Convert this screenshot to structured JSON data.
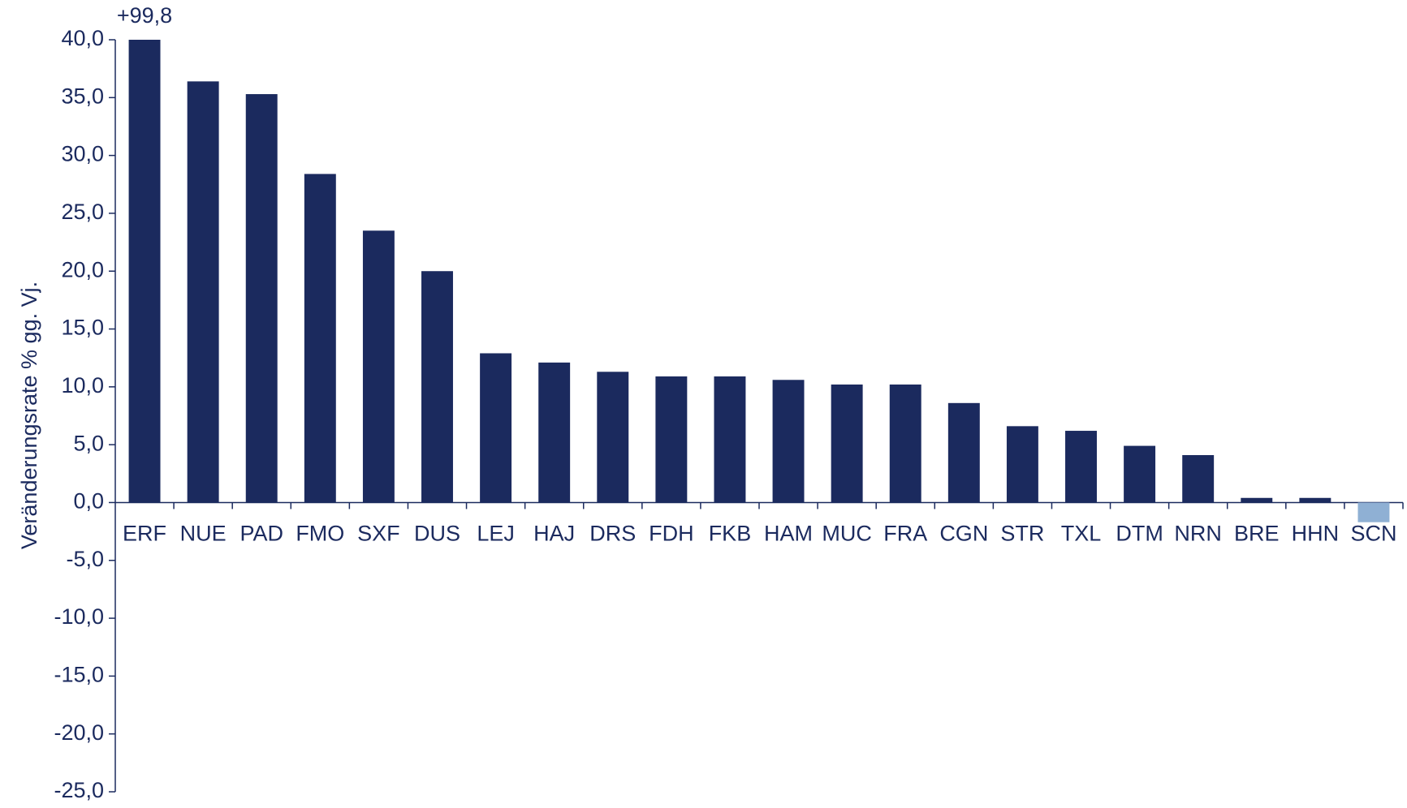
{
  "chart_data": {
    "type": "bar",
    "y_label": "Veränderungsrate % gg. Vj.",
    "categories": [
      "ERF",
      "NUE",
      "PAD",
      "FMO",
      "SXF",
      "DUS",
      "LEJ",
      "HAJ",
      "DRS",
      "FDH",
      "FKB",
      "HAM",
      "MUC",
      "FRA",
      "CGN",
      "STR",
      "TXL",
      "DTM",
      "NRN",
      "BRE",
      "HHN",
      "SCN"
    ],
    "values": [
      99.8,
      36.4,
      35.3,
      28.4,
      23.5,
      20.0,
      12.9,
      12.1,
      11.3,
      10.9,
      10.9,
      10.6,
      10.2,
      10.2,
      8.6,
      6.6,
      6.2,
      4.9,
      4.1,
      0.4,
      0.4,
      -1.7
    ],
    "value_labels": [
      "+99,8",
      null,
      null,
      null,
      null,
      null,
      null,
      null,
      null,
      null,
      null,
      null,
      null,
      null,
      null,
      null,
      null,
      null,
      null,
      null,
      null,
      null
    ],
    "colors": [
      "#1b2a5e",
      "#1b2a5e",
      "#1b2a5e",
      "#1b2a5e",
      "#1b2a5e",
      "#1b2a5e",
      "#1b2a5e",
      "#1b2a5e",
      "#1b2a5e",
      "#1b2a5e",
      "#1b2a5e",
      "#1b2a5e",
      "#1b2a5e",
      "#1b2a5e",
      "#1b2a5e",
      "#1b2a5e",
      "#1b2a5e",
      "#1b2a5e",
      "#1b2a5e",
      "#1b2a5e",
      "#1b2a5e",
      "#8fb0d4"
    ],
    "ylim": [
      -25,
      40
    ],
    "yticks": [
      {
        "value": -25,
        "label": "-25,0"
      },
      {
        "value": -20,
        "label": "-20,0"
      },
      {
        "value": -15,
        "label": "-15,0"
      },
      {
        "value": -10,
        "label": "-10,0"
      },
      {
        "value": -5,
        "label": "-5,0"
      },
      {
        "value": 0,
        "label": "0,0"
      },
      {
        "value": 5,
        "label": "5,0"
      },
      {
        "value": 10,
        "label": "10,0"
      },
      {
        "value": 15,
        "label": "15,0"
      },
      {
        "value": 20,
        "label": "20,0"
      },
      {
        "value": 25,
        "label": "25,0"
      },
      {
        "value": 30,
        "label": "30,0"
      },
      {
        "value": 35,
        "label": "35,0"
      },
      {
        "value": 40,
        "label": "40,0"
      }
    ],
    "grid": false
  }
}
